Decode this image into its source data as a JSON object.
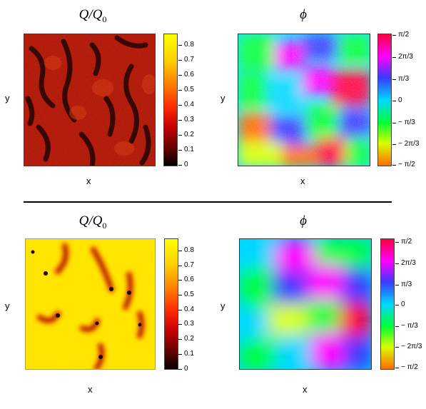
{
  "panels": [
    {
      "id": "top-left",
      "title_main": "Q/Q",
      "title_sub": "0",
      "xlabel": "x",
      "ylabel": "y",
      "colorbar": "hot",
      "ticks": [
        "0.8",
        "0.7",
        "0.6",
        "0.5",
        "0.4",
        "0.3",
        "0.2",
        "0.1",
        "0"
      ]
    },
    {
      "id": "top-right",
      "title_main": "ϕ",
      "title_sub": "",
      "xlabel": "x",
      "ylabel": "y",
      "colorbar": "phase",
      "ticks": [
        "π/2",
        "2π/3",
        "π/3",
        "0",
        "− π/3",
        "− 2π/3",
        "− π/2"
      ]
    },
    {
      "id": "bottom-left",
      "title_main": "Q/Q",
      "title_sub": "0",
      "xlabel": "x",
      "ylabel": "y",
      "colorbar": "hot",
      "ticks": [
        "0.8",
        "0.7",
        "0.6",
        "0.5",
        "0.4",
        "0.3",
        "0.2",
        "0.1",
        "0"
      ]
    },
    {
      "id": "bottom-right",
      "title_main": "ϕ",
      "title_sub": "",
      "xlabel": "x",
      "ylabel": "y",
      "colorbar": "phase",
      "ticks": [
        "π/2",
        "2π/3",
        "π/3",
        "0",
        "− π/3",
        "− 2π/3",
        "− π/2"
      ]
    }
  ],
  "colors": {
    "hot": [
      "#000000",
      "#5a0000",
      "#c80000",
      "#ff2a00",
      "#ff7f00",
      "#ffd000",
      "#ffff00"
    ],
    "phase": [
      "#ff0040",
      "#ff00ff",
      "#3a3aff",
      "#00d8ff",
      "#00ff3a",
      "#d8ff00",
      "#ff6a00"
    ]
  }
}
